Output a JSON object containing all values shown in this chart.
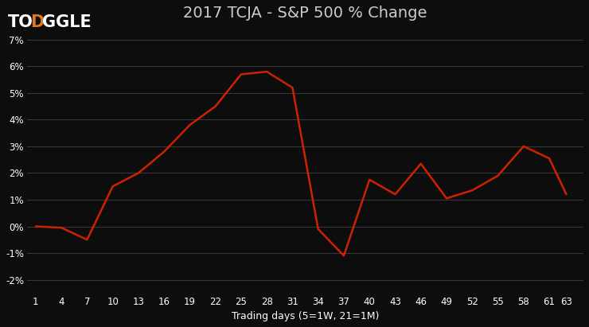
{
  "title": "2017 TCJA - S&P 500 % Change",
  "xlabel": "Trading days (5=1W, 21=1M)",
  "background_color": "#0d0d0d",
  "line_color": "#cc2200",
  "text_color": "#ffffff",
  "grid_color": "#3a3a3a",
  "title_color": "#cccccc",
  "logo_D_color": "#e07820",
  "x_ticks": [
    1,
    4,
    7,
    10,
    13,
    16,
    19,
    22,
    25,
    28,
    31,
    34,
    37,
    40,
    43,
    46,
    49,
    52,
    55,
    58,
    61,
    63
  ],
  "y_ticks": [
    -2,
    -1,
    0,
    1,
    2,
    3,
    4,
    5,
    6,
    7
  ],
  "ylim": [
    -2.5,
    7.5
  ],
  "xlim": [
    0.0,
    65.0
  ],
  "x_data": [
    1,
    4,
    7,
    10,
    13,
    16,
    19,
    22,
    25,
    28,
    31,
    34,
    37,
    40,
    43,
    46,
    49,
    52,
    55,
    58,
    61,
    63
  ],
  "y_data": [
    0.0,
    -0.05,
    -0.5,
    1.5,
    2.0,
    2.8,
    3.8,
    4.5,
    5.7,
    5.8,
    5.2,
    -0.1,
    -1.1,
    1.75,
    1.2,
    2.35,
    1.05,
    1.35,
    1.9,
    3.0,
    2.55,
    1.2
  ],
  "logo_fontsize": 15,
  "title_fontsize": 14,
  "tick_fontsize": 8.5,
  "xlabel_fontsize": 9
}
